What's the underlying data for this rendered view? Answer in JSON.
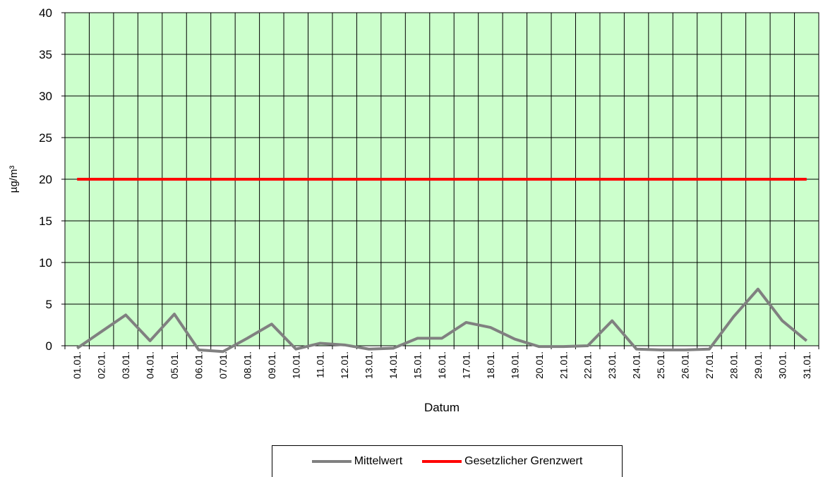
{
  "chart_data": {
    "type": "line",
    "xlabel": "Datum",
    "ylabel": "µg/m³",
    "ylim": [
      0,
      40
    ],
    "yticks": [
      0,
      5,
      10,
      15,
      20,
      25,
      30,
      35,
      40
    ],
    "grid": true,
    "plot_background": "#ccffcc",
    "legend_position": "bottom-center",
    "categories": [
      "01.01.",
      "02.01.",
      "03.01.",
      "04.01.",
      "05.01.",
      "06.01.",
      "07.01.",
      "08.01.",
      "09.01.",
      "10.01.",
      "11.01.",
      "12.01.",
      "13.01.",
      "14.01.",
      "15.01.",
      "16.01.",
      "17.01.",
      "18.01.",
      "19.01.",
      "20.01.",
      "21.01.",
      "22.01.",
      "23.01.",
      "24.01.",
      "25.01.",
      "26.01.",
      "27.01.",
      "28.01.",
      "29.01.",
      "30.01.",
      "31.01."
    ],
    "series": [
      {
        "name": "Mittelwert",
        "color": "#808080",
        "values": [
          -0.3,
          1.7,
          3.7,
          0.6,
          3.8,
          -0.5,
          -0.7,
          0.9,
          2.6,
          -0.4,
          0.3,
          0.1,
          -0.4,
          -0.3,
          0.9,
          0.9,
          2.8,
          2.2,
          0.8,
          -0.1,
          -0.1,
          0.0,
          3.0,
          -0.4,
          -0.5,
          -0.5,
          -0.4,
          3.5,
          6.8,
          3.0,
          0.6
        ]
      },
      {
        "name": "Gesetzlicher Grenzwert",
        "color": "#ff0000",
        "values": [
          20,
          20,
          20,
          20,
          20,
          20,
          20,
          20,
          20,
          20,
          20,
          20,
          20,
          20,
          20,
          20,
          20,
          20,
          20,
          20,
          20,
          20,
          20,
          20,
          20,
          20,
          20,
          20,
          20,
          20,
          20
        ]
      }
    ]
  }
}
